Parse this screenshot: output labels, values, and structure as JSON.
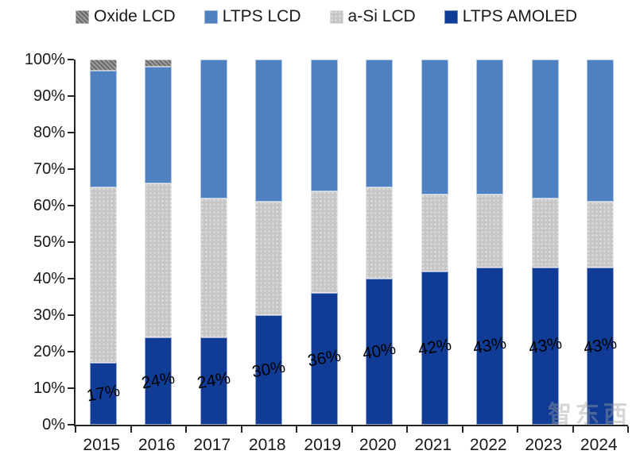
{
  "legend": {
    "items": [
      {
        "label": "Oxide LCD",
        "color": "#7F7F7F",
        "pattern": "hatch"
      },
      {
        "label": "LTPS LCD",
        "color": "#5081C1",
        "pattern": ""
      },
      {
        "label": "a-Si LCD",
        "color": "#C6C6C6",
        "pattern": "dots"
      },
      {
        "label": "LTPS AMOLED",
        "color": "#113C96",
        "pattern": ""
      }
    ]
  },
  "chart_data": {
    "type": "bar",
    "stacked": true,
    "normalized_100pct": true,
    "title": "",
    "xlabel": "",
    "ylabel": "",
    "ylim": [
      0,
      100
    ],
    "grid": false,
    "legend_position": "top",
    "categories": [
      "2015",
      "2016",
      "2017",
      "2018",
      "2019",
      "2020",
      "2021",
      "2022",
      "2023",
      "2024"
    ],
    "series": [
      {
        "name": "LTPS AMOLED",
        "color": "#113C96",
        "pattern": "",
        "values": [
          17,
          24,
          24,
          30,
          36,
          40,
          42,
          43,
          43,
          43
        ],
        "labels": [
          "17%",
          "24%",
          "24%",
          "30%",
          "36%",
          "40%",
          "42%",
          "43%",
          "43%",
          "43%"
        ]
      },
      {
        "name": "a-Si LCD",
        "color": "#C6C6C6",
        "pattern": "dots",
        "values": [
          48,
          42,
          38,
          31,
          28,
          25,
          21,
          20,
          19,
          18
        ]
      },
      {
        "name": "LTPS LCD",
        "color": "#5081C1",
        "pattern": "",
        "values": [
          32,
          32,
          38,
          39,
          36,
          35,
          37,
          37,
          38,
          39
        ]
      },
      {
        "name": "Oxide LCD",
        "color": "#7F7F7F",
        "pattern": "hatch",
        "values": [
          3,
          2,
          0,
          0,
          0,
          0,
          0,
          0,
          0,
          0
        ]
      }
    ],
    "y_ticks": [
      "100%",
      "90%",
      "80%",
      "70%",
      "60%",
      "50%",
      "40%",
      "30%",
      "20%",
      "10%",
      "0%"
    ]
  },
  "watermark": {
    "text": "智东西"
  }
}
